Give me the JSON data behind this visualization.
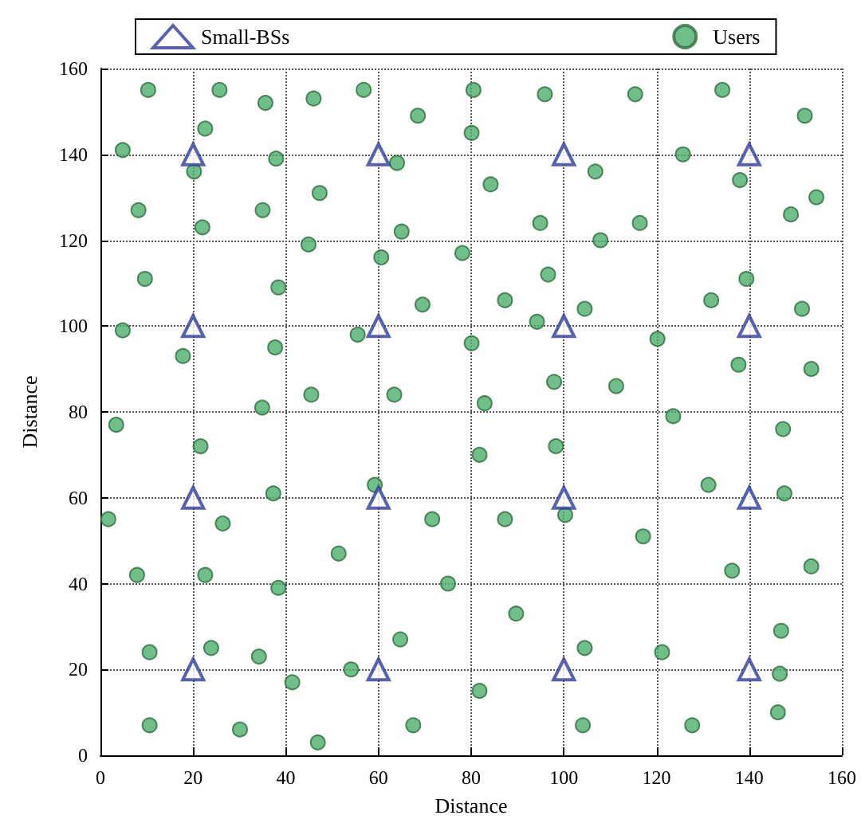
{
  "chart_data": {
    "type": "scatter",
    "xlabel": "Distance",
    "ylabel": "Distance",
    "xlim": [
      0,
      160
    ],
    "ylim": [
      0,
      160
    ],
    "xticks": [
      0,
      20,
      40,
      60,
      80,
      100,
      120,
      140,
      160
    ],
    "yticks": [
      0,
      20,
      40,
      60,
      80,
      100,
      120,
      140,
      160
    ],
    "grid": true,
    "legend": "top",
    "series": [
      {
        "name": "Small-BSs",
        "color": "#2e3a9a",
        "marker": "triangle",
        "x": [
          20,
          60,
          100,
          140,
          20,
          60,
          100,
          140,
          20,
          60,
          100,
          140,
          20,
          60,
          100,
          140
        ],
        "values": [
          140,
          140,
          140,
          140,
          100,
          100,
          100,
          100,
          60,
          60,
          60,
          60,
          20,
          20,
          20,
          20
        ]
      },
      {
        "name": "Users",
        "color": "#4caf6a",
        "marker": "circle",
        "x": [
          10.3,
          25.7,
          35.6,
          46,
          56.8,
          68.5,
          80.5,
          95.9,
          115.4,
          134.2,
          152,
          4.8,
          22.6,
          80.1,
          20.2,
          37.9,
          64,
          106.8,
          125.7,
          138,
          149,
          154.5,
          8.2,
          22,
          35,
          47.3,
          65,
          84.2,
          94.9,
          107.9,
          116.4,
          9.6,
          38.4,
          44.9,
          60.6,
          78.1,
          69.5,
          87.3,
          96.6,
          94.2,
          104.5,
          131.8,
          139.4,
          151.4,
          4.8,
          17.8,
          37.7,
          45.5,
          55.5,
          63.4,
          80.1,
          97.9,
          111.3,
          120.2,
          137.7,
          153.4,
          3.4,
          21.6,
          34.9,
          82.9,
          98.3,
          123.6,
          147.3,
          1.7,
          7.9,
          26.4,
          22.6,
          37.3,
          38.4,
          51.4,
          59.2,
          71.6,
          81.8,
          87.3,
          100.3,
          117.1,
          131.2,
          136.3,
          147.6,
          153.4,
          10.6,
          23.9,
          34.2,
          41.4,
          54.1,
          64.7,
          75,
          81.8,
          89.7,
          104.5,
          121.2,
          146.6,
          146.9,
          10.6,
          30.1,
          46.9,
          67.5,
          104.1,
          127.7,
          146.2
        ],
        "values": [
          155,
          155,
          152,
          153,
          155,
          149,
          155,
          154,
          154,
          155,
          149,
          141,
          146,
          145,
          136,
          139,
          138,
          136,
          140,
          134,
          126,
          130,
          127,
          123,
          127,
          131,
          122,
          133,
          124,
          120,
          124,
          111,
          109,
          119,
          116,
          117,
          105,
          106,
          112,
          101,
          104,
          106,
          111,
          104,
          99,
          93,
          95,
          84,
          98,
          84,
          96,
          87,
          86,
          97,
          91,
          90,
          77,
          72,
          81,
          82,
          72,
          79,
          76,
          55,
          42,
          54,
          42,
          61,
          39,
          47,
          63,
          55,
          70,
          55,
          56,
          51,
          63,
          43,
          61,
          44,
          24,
          25,
          23,
          17,
          20,
          27,
          40,
          15,
          33,
          25,
          24,
          19,
          29,
          7,
          6,
          3,
          7,
          7,
          7,
          10
        ]
      }
    ]
  }
}
